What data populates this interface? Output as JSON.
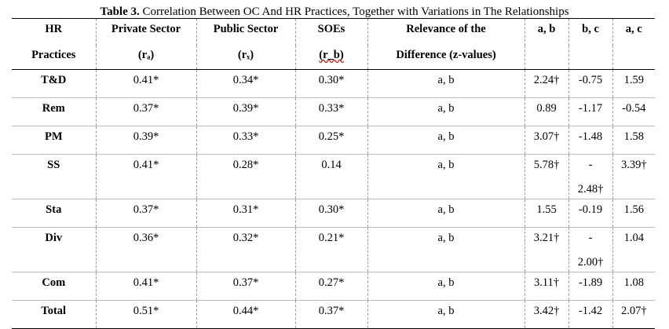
{
  "caption": {
    "label": "Table 3.",
    "text": " Correlation Between OC And HR Practices, Together with Variations in The Relationships"
  },
  "header": {
    "row1": [
      "HR",
      "Private Sector",
      "Public Sector",
      "SOEs",
      "Relevance of the",
      "a, b",
      "b, c",
      "a, c"
    ],
    "row2": [
      "Practices",
      "(rₐ)",
      "(rₓ)",
      "(r_b)",
      "Difference (z-values)",
      "",
      "",
      ""
    ]
  },
  "rows": [
    {
      "practice": "T&D",
      "private": "0.41*",
      "public": "0.34*",
      "soe": "0.30*",
      "relevance": "a, b",
      "ab": "2.24†",
      "bc": "-0.75",
      "bc2": "",
      "ac": "1.59"
    },
    {
      "practice": "Rem",
      "private": "0.37*",
      "public": "0.39*",
      "soe": "0.33*",
      "relevance": "a, b",
      "ab": "0.89",
      "bc": "-1.17",
      "bc2": "",
      "ac": "-0.54"
    },
    {
      "practice": "PM",
      "private": "0.39*",
      "public": "0.33*",
      "soe": "0.25*",
      "relevance": "a, b",
      "ab": "3.07†",
      "bc": "-1.48",
      "bc2": "",
      "ac": "1.58"
    },
    {
      "practice": "SS",
      "private": "0.41*",
      "public": "0.28*",
      "soe": "0.14",
      "relevance": "a, b",
      "ab": "5.78†",
      "bc": "-",
      "bc2": "2.48†",
      "ac": "3.39†"
    },
    {
      "practice": "Sta",
      "private": "0.37*",
      "public": "0.31*",
      "soe": "0.30*",
      "relevance": "a, b",
      "ab": "1.55",
      "bc": "-0.19",
      "bc2": "",
      "ac": "1.56"
    },
    {
      "practice": "Div",
      "private": "0.36*",
      "public": "0.32*",
      "soe": "0.21*",
      "relevance": "a, b",
      "ab": "3.21†",
      "bc": "-",
      "bc2": "2.00†",
      "ac": "1.04"
    },
    {
      "practice": "Com",
      "private": "0.41*",
      "public": "0.37*",
      "soe": "0.27*",
      "relevance": "a, b",
      "ab": "3.11†",
      "bc": "-1.89",
      "bc2": "",
      "ac": "1.08"
    },
    {
      "practice": "Total",
      "private": "0.51*",
      "public": "0.44*",
      "soe": "0.37*",
      "relevance": "a, b",
      "ab": "3.42†",
      "bc": "-1.42",
      "bc2": "",
      "ac": "2.07†"
    }
  ]
}
